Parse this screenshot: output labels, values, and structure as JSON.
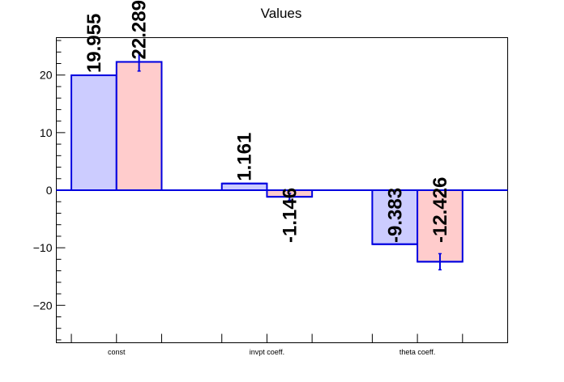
{
  "chart_data": {
    "type": "bar",
    "title": "Values",
    "categories": [
      "const",
      "invpt coeff.",
      "theta coeff."
    ],
    "series": [
      {
        "values": [
          19.955,
          1.161,
          -9.383
        ],
        "labels": [
          "19.955",
          "1.161",
          "-9.383"
        ],
        "fill": "#ccccff",
        "stroke": "#0000e0"
      },
      {
        "values": [
          22.289,
          -1.146,
          -12.426
        ],
        "labels": [
          "22.289",
          "-1.146",
          "-12.426"
        ],
        "errors": [
          1.6,
          0.6,
          1.4
        ],
        "fill": "#ffcccc",
        "stroke": "#0000e0"
      }
    ],
    "yticks": [
      -20,
      -10,
      0,
      10,
      20
    ],
    "ytick_labels": [
      "−20",
      "−10",
      "0",
      "10",
      "20"
    ],
    "ylim": [
      -26.5,
      26.5
    ],
    "grid": false,
    "xlabel": "",
    "ylabel": ""
  }
}
